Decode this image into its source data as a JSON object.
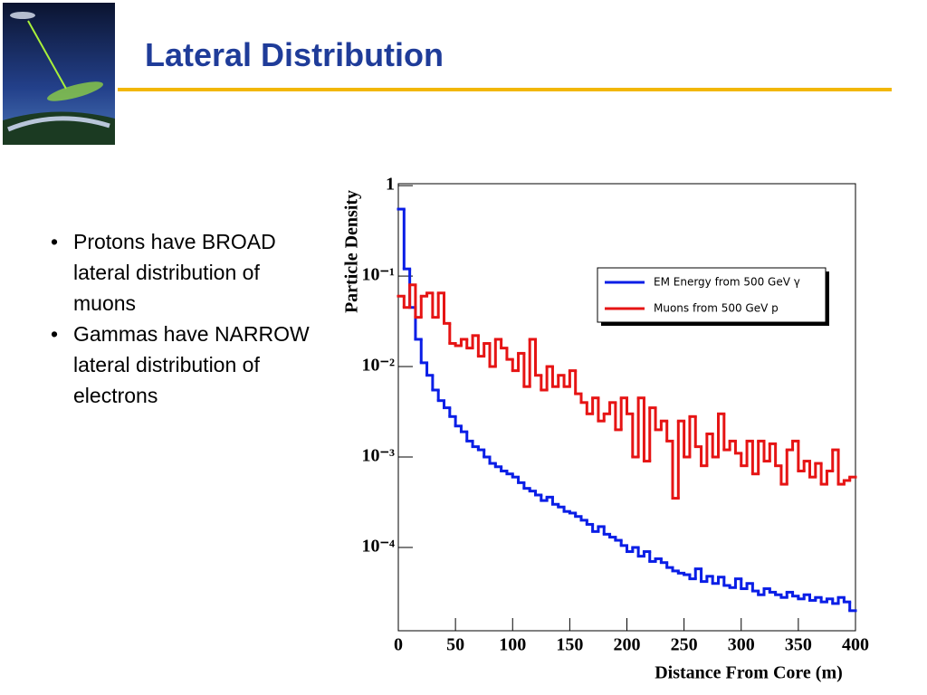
{
  "slide": {
    "title": "Lateral Distribution",
    "bullets": [
      "Protons have BROAD lateral distribution of muons",
      "Gammas have NARROW lateral distribution of electrons"
    ]
  },
  "chart_data": {
    "type": "histogram",
    "xlabel": "Distance From Core (m)",
    "ylabel": "Particle Density",
    "log_y": true,
    "legend": "upper right",
    "bins": [
      0,
      5,
      10,
      15,
      20,
      25,
      30,
      35,
      40,
      45,
      50,
      55,
      60,
      65,
      70,
      75,
      80,
      85,
      90,
      95,
      100,
      105,
      110,
      115,
      120,
      125,
      130,
      135,
      140,
      145,
      150,
      155,
      160,
      165,
      170,
      175,
      180,
      185,
      190,
      195,
      200,
      205,
      210,
      215,
      220,
      225,
      230,
      235,
      240,
      245,
      250,
      255,
      260,
      265,
      270,
      275,
      280,
      285,
      290,
      295,
      300,
      305,
      310,
      315,
      320,
      325,
      330,
      335,
      340,
      345,
      350,
      355,
      360,
      365,
      370,
      375,
      380,
      385,
      390,
      395,
      400
    ],
    "series": [
      {
        "name": "EM Energy from 500 GeV γ",
        "color": "#0a1ee6",
        "values": [
          0.55,
          0.12,
          0.045,
          0.02,
          0.011,
          0.008,
          0.0055,
          0.0042,
          0.0035,
          0.0028,
          0.0022,
          0.0019,
          0.0015,
          0.0013,
          0.0012,
          0.001,
          0.00085,
          0.00078,
          0.0007,
          0.00065,
          0.0006,
          0.00052,
          0.00045,
          0.00042,
          0.00038,
          0.00033,
          0.00036,
          0.0003,
          0.00028,
          0.00025,
          0.00024,
          0.00022,
          0.0002,
          0.00018,
          0.00015,
          0.00017,
          0.00014,
          0.00013,
          0.00012,
          0.000105,
          9e-05,
          0.0001,
          8e-05,
          9e-05,
          7e-05,
          7.5e-05,
          6.8e-05,
          6e-05,
          5.5e-05,
          5.2e-05,
          5e-05,
          4.5e-05,
          5.8e-05,
          4.2e-05,
          4.8e-05,
          4e-05,
          4.7e-05,
          3.8e-05,
          3.6e-05,
          4.5e-05,
          3.5e-05,
          4e-05,
          3.3e-05,
          3e-05,
          3.5e-05,
          3.2e-05,
          3e-05,
          2.8e-05,
          3.2e-05,
          2.9e-05,
          2.7e-05,
          3e-05,
          2.6e-05,
          2.8e-05,
          2.5e-05,
          2.7e-05,
          2.4e-05,
          2.8e-05,
          2.5e-05,
          2e-05
        ]
      },
      {
        "name": "Muons from 500 GeV p",
        "color": "#e61414",
        "values": [
          0.06,
          0.045,
          0.08,
          0.035,
          0.06,
          0.065,
          0.035,
          0.065,
          0.03,
          0.018,
          0.017,
          0.02,
          0.016,
          0.022,
          0.013,
          0.018,
          0.01,
          0.02,
          0.016,
          0.012,
          0.009,
          0.014,
          0.006,
          0.02,
          0.008,
          0.0055,
          0.01,
          0.006,
          0.008,
          0.006,
          0.009,
          0.005,
          0.004,
          0.003,
          0.0045,
          0.0025,
          0.003,
          0.004,
          0.002,
          0.0045,
          0.003,
          0.001,
          0.0045,
          0.0009,
          0.0035,
          0.002,
          0.0025,
          0.0015,
          0.00035,
          0.0025,
          0.001,
          0.0028,
          0.0013,
          0.0008,
          0.0018,
          0.001,
          0.003,
          0.0012,
          0.0015,
          0.0011,
          0.0008,
          0.0015,
          0.00065,
          0.0015,
          0.0009,
          0.0014,
          0.0008,
          0.0005,
          0.0012,
          0.0015,
          0.0007,
          0.0009,
          0.0006,
          0.00085,
          0.0005,
          0.0007,
          0.0012,
          0.0005,
          0.00055,
          0.0006
        ]
      }
    ],
    "xlim": [
      0,
      400
    ],
    "xticks": [
      0,
      50,
      100,
      150,
      200,
      250,
      300,
      350,
      400
    ],
    "ylim": [
      1.2e-05,
      1.05
    ],
    "yticks": [
      1,
      {
        "value": 0.1,
        "label": "10⁻¹"
      },
      {
        "value": 0.01,
        "label": "10⁻²"
      },
      {
        "value": 0.001,
        "label": "10⁻³"
      },
      {
        "value": 0.0001,
        "label": "10⁻⁴"
      }
    ]
  }
}
